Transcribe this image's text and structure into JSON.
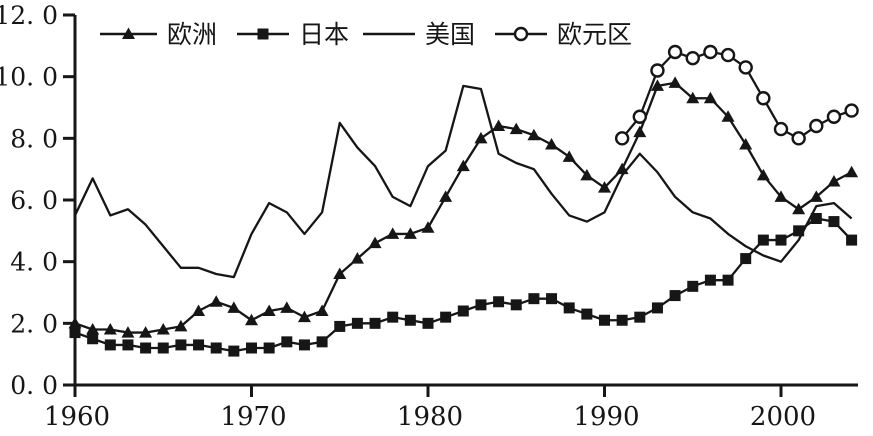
{
  "chart_data": {
    "type": "line",
    "title": "",
    "x_axis": {
      "ticks": [
        1960,
        1970,
        1980,
        1990,
        2000
      ],
      "tick_labels": [
        "1960",
        "1970",
        "1980",
        "1990",
        "2000"
      ],
      "range": [
        1960,
        2004.4
      ]
    },
    "y_axis": {
      "ticks": [
        0,
        2,
        4,
        6,
        8,
        10,
        12
      ],
      "tick_labels": [
        "0. 0",
        "2. 0",
        "4. 0",
        "6. 0",
        "8. 0",
        "10. 0",
        "12. 0"
      ],
      "range": [
        0,
        12
      ]
    },
    "grid": false,
    "legend_position": "top-inside",
    "x": [
      1960,
      1961,
      1962,
      1963,
      1964,
      1965,
      1966,
      1967,
      1968,
      1969,
      1970,
      1971,
      1972,
      1973,
      1974,
      1975,
      1976,
      1977,
      1978,
      1979,
      1980,
      1981,
      1982,
      1983,
      1984,
      1985,
      1986,
      1987,
      1988,
      1989,
      1990,
      1991,
      1992,
      1993,
      1994,
      1995,
      1996,
      1997,
      1998,
      1999,
      2000,
      2001,
      2002,
      2003,
      2004
    ],
    "series": [
      {
        "id": "europe",
        "name": "欧洲",
        "marker": "triangle-filled",
        "values": [
          2.0,
          1.8,
          1.8,
          1.7,
          1.7,
          1.8,
          1.9,
          2.4,
          2.7,
          2.5,
          2.1,
          2.4,
          2.5,
          2.2,
          2.4,
          3.6,
          4.1,
          4.6,
          4.9,
          4.9,
          5.1,
          6.1,
          7.1,
          8.0,
          8.4,
          8.3,
          8.1,
          7.8,
          7.4,
          6.8,
          6.4,
          7.0,
          8.2,
          9.7,
          9.8,
          9.3,
          9.3,
          8.7,
          7.8,
          6.8,
          6.1,
          5.7,
          6.1,
          6.6,
          6.9
        ]
      },
      {
        "id": "japan",
        "name": "日本",
        "marker": "square-filled",
        "values": [
          1.7,
          1.5,
          1.3,
          1.3,
          1.2,
          1.2,
          1.3,
          1.3,
          1.2,
          1.1,
          1.2,
          1.2,
          1.4,
          1.3,
          1.4,
          1.9,
          2.0,
          2.0,
          2.2,
          2.1,
          2.0,
          2.2,
          2.4,
          2.6,
          2.7,
          2.6,
          2.8,
          2.8,
          2.5,
          2.3,
          2.1,
          2.1,
          2.2,
          2.5,
          2.9,
          3.2,
          3.4,
          3.4,
          4.1,
          4.7,
          4.7,
          5.0,
          5.4,
          5.3,
          4.7
        ]
      },
      {
        "id": "usa",
        "name": "美国",
        "marker": "none",
        "values": [
          5.5,
          6.7,
          5.5,
          5.7,
          5.2,
          4.5,
          3.8,
          3.8,
          3.6,
          3.5,
          4.9,
          5.9,
          5.6,
          4.9,
          5.6,
          8.5,
          7.7,
          7.1,
          6.1,
          5.8,
          7.1,
          7.6,
          9.7,
          9.6,
          7.5,
          7.2,
          7.0,
          6.2,
          5.5,
          5.3,
          5.6,
          6.8,
          7.5,
          6.9,
          6.1,
          5.6,
          5.4,
          4.9,
          4.5,
          4.2,
          4.0,
          4.7,
          5.8,
          5.9,
          5.4
        ]
      },
      {
        "id": "eurozone",
        "name": "欧元区",
        "marker": "circle-open",
        "values": [
          null,
          null,
          null,
          null,
          null,
          null,
          null,
          null,
          null,
          null,
          null,
          null,
          null,
          null,
          null,
          null,
          null,
          null,
          null,
          null,
          null,
          null,
          null,
          null,
          null,
          null,
          null,
          null,
          null,
          null,
          null,
          8.0,
          8.7,
          10.2,
          10.8,
          10.6,
          10.8,
          10.7,
          10.3,
          9.3,
          8.3,
          8.0,
          8.4,
          8.7,
          8.9
        ]
      }
    ]
  },
  "colors": {
    "line": "#161616",
    "background": "#ffffff"
  }
}
